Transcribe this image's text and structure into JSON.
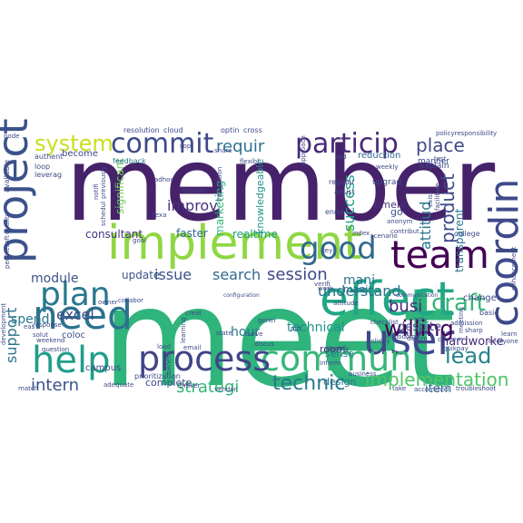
{
  "words": [
    {
      "text": "member",
      "color": "#46226b"
    },
    {
      "text": "meet",
      "color": "#2fb47c"
    },
    {
      "text": "implement",
      "color": "#8fd744"
    },
    {
      "text": "project",
      "color": "#3b528b"
    },
    {
      "text": "team",
      "color": "#440154"
    },
    {
      "text": "coordin",
      "color": "#3e4a89"
    },
    {
      "text": "effect",
      "color": "#21a685"
    },
    {
      "text": "need",
      "color": "#2c728e"
    },
    {
      "text": "user",
      "color": "#3e4989"
    },
    {
      "text": "commun",
      "color": "#35b779"
    },
    {
      "text": "help",
      "color": "#1f9e89"
    },
    {
      "text": "process",
      "color": "#414487"
    },
    {
      "text": "good",
      "color": "#31688e"
    },
    {
      "text": "plan",
      "color": "#2a788e"
    },
    {
      "text": "particip",
      "color": "#482878"
    },
    {
      "text": "commit",
      "color": "#3e4a89"
    },
    {
      "text": "system",
      "color": "#c8e020"
    },
    {
      "text": "craft",
      "color": "#35b779"
    },
    {
      "text": "lead",
      "color": "#26828e"
    },
    {
      "text": "willing",
      "color": "#440154"
    },
    {
      "text": "implementation",
      "color": "#52c569"
    },
    {
      "text": "technic",
      "color": "#2a788e"
    },
    {
      "text": "intern",
      "color": "#3b528b"
    },
    {
      "text": "strategi",
      "color": "#35b779"
    },
    {
      "text": "place",
      "color": "#3e4a89"
    },
    {
      "text": "session",
      "color": "#3e4a89"
    },
    {
      "text": "issue",
      "color": "#3b528b"
    },
    {
      "text": "search",
      "color": "#31688e"
    },
    {
      "text": "requir",
      "color": "#2c728e"
    },
    {
      "text": "improv",
      "color": "#46337e"
    },
    {
      "text": "busi",
      "color": "#472d7b"
    },
    {
      "text": "understand",
      "color": "#2c728e"
    },
    {
      "text": "success",
      "color": "#1f9e89"
    },
    {
      "text": "attitud",
      "color": "#2a788e"
    },
    {
      "text": "product",
      "color": "#3e4a89"
    },
    {
      "text": "excel",
      "color": "#3e4a89"
    },
    {
      "text": "spend",
      "color": "#2a788e"
    },
    {
      "text": "support",
      "color": "#2c728e"
    },
    {
      "text": "module",
      "color": "#3b528b"
    },
    {
      "text": "hour",
      "color": "#2a788e"
    },
    {
      "text": "technical",
      "color": "#21918c"
    },
    {
      "text": "mani",
      "color": "#2c728e"
    },
    {
      "text": "hardworke",
      "color": "#472d7b"
    },
    {
      "text": "despite",
      "color": "#414487"
    },
    {
      "text": "item",
      "color": "#2c728e"
    },
    {
      "text": "update",
      "color": "#3b528b"
    },
    {
      "text": "transparent",
      "color": "#2a788e"
    },
    {
      "text": "consultant",
      "color": "#46337e"
    },
    {
      "text": "faster",
      "color": "#31688e"
    },
    {
      "text": "realtime",
      "color": "#1f9e89"
    },
    {
      "text": "marketing",
      "color": "#2fb47c"
    },
    {
      "text": "knowledgeable",
      "color": "#21918c"
    },
    {
      "text": "significant",
      "color": "#6ece58"
    },
    {
      "text": "timely",
      "color": "#46337e"
    },
    {
      "text": "go",
      "color": "#3b528b"
    },
    {
      "text": "mani",
      "color": "#2c728e"
    },
    {
      "text": "sense",
      "color": "#2a788e"
    },
    {
      "text": "room",
      "color": "#46337e"
    },
    {
      "text": "design",
      "color": "#2c728e"
    },
    {
      "text": "complete",
      "color": "#3e4a89"
    },
    {
      "text": "campus",
      "color": "#3e4a89"
    },
    {
      "text": "change",
      "color": "#3e4a89"
    },
    {
      "text": "coloc",
      "color": "#3e4a89"
    },
    {
      "text": "become",
      "color": "#3e4a89"
    },
    {
      "text": "reduction",
      "color": "#31688e"
    },
    {
      "text": "upgrad",
      "color": "#3e4a89"
    },
    {
      "text": "manner",
      "color": "#3e4a89"
    },
    {
      "text": "explain",
      "color": "#3e4a89"
    },
    {
      "text": "college",
      "color": "#3e4a89"
    },
    {
      "text": "enrol",
      "color": "#3e4a89"
    },
    {
      "text": "regular",
      "color": "#3e4a89"
    },
    {
      "text": "assist",
      "color": "#3e4a89"
    },
    {
      "text": "feedback",
      "color": "#2a788e"
    },
    {
      "text": "resolution",
      "color": "#3e4a89"
    },
    {
      "text": "cloud",
      "color": "#3e4a89"
    },
    {
      "text": "optin",
      "color": "#3e4a89"
    },
    {
      "text": "cross",
      "color": "#3e4a89"
    },
    {
      "text": "policyresponsibility",
      "color": "#3e4a89"
    },
    {
      "text": "node",
      "color": "#3e4a89"
    },
    {
      "text": "authent",
      "color": "#3e4a89"
    },
    {
      "text": "loop",
      "color": "#3e4a89"
    },
    {
      "text": "leverag",
      "color": "#3e4a89"
    },
    {
      "text": "available",
      "color": "#3e4a89"
    },
    {
      "text": "email",
      "color": "#3e4a89"
    },
    {
      "text": "load",
      "color": "#3e4a89"
    },
    {
      "text": "identify",
      "color": "#3e4a89"
    },
    {
      "text": "holiday",
      "color": "#3e4a89"
    },
    {
      "text": "everyone",
      "color": "#3e4a89"
    },
    {
      "text": "quikpay",
      "color": "#3e4a89"
    },
    {
      "text": "troubleshoot",
      "color": "#3e4a89"
    },
    {
      "text": "accommod",
      "color": "#3e4a89"
    },
    {
      "text": "vendor",
      "color": "#3e4a89"
    },
    {
      "text": "broker",
      "color": "#3e4a89"
    },
    {
      "text": "adequate",
      "color": "#3e4a89"
    },
    {
      "text": "prioritization",
      "color": "#3e4a89"
    },
    {
      "text": "question",
      "color": "#3e4a89"
    },
    {
      "text": "weekend",
      "color": "#3e4a89"
    },
    {
      "text": "solut",
      "color": "#3e4a89"
    },
    {
      "text": "response",
      "color": "#3e4a89"
    },
    {
      "text": "collabor",
      "color": "#3e4a89"
    },
    {
      "text": "owner",
      "color": "#3e4a89"
    },
    {
      "text": "creat",
      "color": "#3e4a89"
    },
    {
      "text": "state",
      "color": "#3e4a89"
    },
    {
      "text": "gener",
      "color": "#3e4a89"
    },
    {
      "text": "put",
      "color": "#3e4a89"
    },
    {
      "text": "work",
      "color": "#3e4a89"
    },
    {
      "text": "inform",
      "color": "#3e4a89"
    },
    {
      "text": "checklist",
      "color": "#3e4a89"
    },
    {
      "text": "basic",
      "color": "#3e4a89"
    },
    {
      "text": "admission",
      "color": "#3e4a89"
    },
    {
      "text": "sharp",
      "color": "#3e4a89"
    },
    {
      "text": "learn",
      "color": "#3e4a89"
    },
    {
      "text": "concern",
      "color": "#3e4a89"
    },
    {
      "text": "solv",
      "color": "#3e4a89"
    },
    {
      "text": "business",
      "color": "#3e4a89"
    },
    {
      "text": "adhoc",
      "color": "#3e4a89"
    },
    {
      "text": "sop",
      "color": "#3e4a89"
    },
    {
      "text": "share",
      "color": "#3e4a89"
    },
    {
      "text": "flexibl",
      "color": "#3e4a89"
    },
    {
      "text": "approach",
      "color": "#3e4a89"
    },
    {
      "text": "aid",
      "color": "#3e4a89"
    },
    {
      "text": "index",
      "color": "#3e4a89"
    },
    {
      "text": "contribut",
      "color": "#3e4a89"
    },
    {
      "text": "datum",
      "color": "#3e4a89"
    },
    {
      "text": "key",
      "color": "#3e4a89"
    },
    {
      "text": "anonym",
      "color": "#3e4a89"
    },
    {
      "text": "attitude",
      "color": "#3e4a89"
    },
    {
      "text": "verifi",
      "color": "#3e4a89"
    },
    {
      "text": "curve",
      "color": "#3e4a89"
    },
    {
      "text": "discus",
      "color": "#3e4a89"
    },
    {
      "text": "learning",
      "color": "#3e4a89"
    },
    {
      "text": "benefit",
      "color": "#3e4a89"
    },
    {
      "text": "goal",
      "color": "#3e4a89"
    },
    {
      "text": "texa",
      "color": "#3e4a89"
    },
    {
      "text": "appsian",
      "color": "#3e4a89"
    },
    {
      "text": "integration",
      "color": "#3e4a89"
    },
    {
      "text": "notifi",
      "color": "#3e4a89"
    },
    {
      "text": "previously",
      "color": "#3e4a89"
    },
    {
      "text": "schedul",
      "color": "#3e4a89"
    },
    {
      "text": "exist",
      "color": "#3e4a89"
    },
    {
      "text": "facilitate",
      "color": "#3e4a89"
    },
    {
      "text": "meeting",
      "color": "#3e4a89"
    },
    {
      "text": "enhancement",
      "color": "#3e4a89"
    },
    {
      "text": "peoplesoft",
      "color": "#3e4a89"
    },
    {
      "text": "quality",
      "color": "#3e4a89"
    },
    {
      "text": "development",
      "color": "#3e4a89"
    },
    {
      "text": "match",
      "color": "#3e4a89"
    },
    {
      "text": "methodolog",
      "color": "#3e4a89"
    },
    {
      "text": "take",
      "color": "#3e4a89"
    },
    {
      "text": "test",
      "color": "#3e4a89"
    },
    {
      "text": "scenario",
      "color": "#3e4a89"
    },
    {
      "text": "eas",
      "color": "#3e4a89"
    },
    {
      "text": "configuration",
      "color": "#3e4a89"
    },
    {
      "text": "communication",
      "color": "#3e4a89"
    },
    {
      "text": "weekly",
      "color": "#3e4a89"
    }
  ]
}
